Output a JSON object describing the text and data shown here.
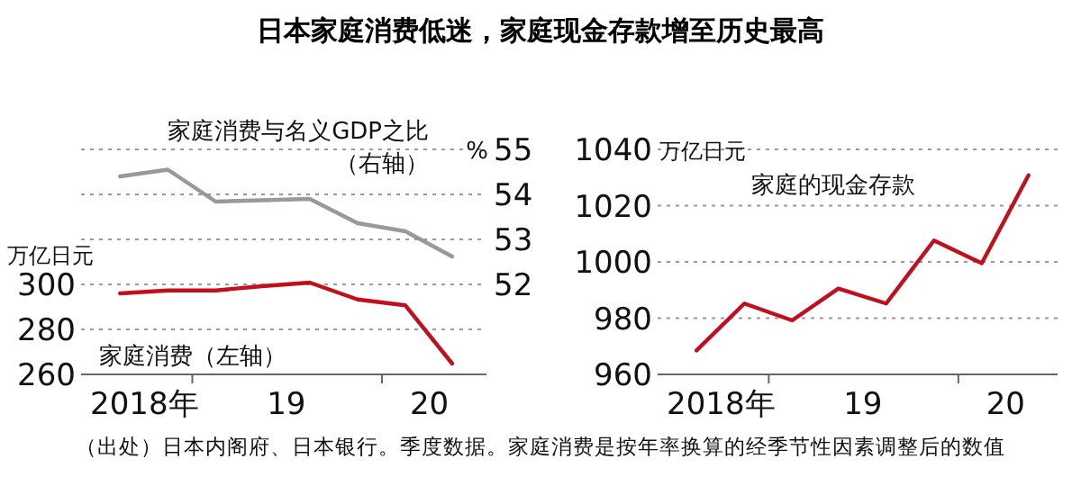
{
  "chart_data": [
    {
      "type": "line",
      "title": "日本家庭消费低迷，家庭现金存款增至历史最高",
      "ylabel": "万亿日元",
      "y2label": "%",
      "annotations": [
        "（出处）日本内阁府、日本银行。季度数据。家庭消费是按年率换算的经季节性因素调整后的数值"
      ],
      "x": [
        "2018-08-15",
        "2018-11-15",
        "2019-02-15",
        "2019-05-15",
        "2019-08-15",
        "2019-11-15",
        "2020-02-15",
        "2020-05-15"
      ],
      "series": [
        {
          "name": "家庭消费与名义GDP之比（右轴）",
          "color": "#999999",
          "axis": "y2",
          "values": [
            54.4,
            54.55,
            53.84,
            53.87,
            53.9,
            53.36,
            53.18,
            52.62
          ]
        },
        {
          "name": "家庭消费（左轴）",
          "color": "#c0101e",
          "values": [
            296,
            297.3,
            297.3,
            299.2,
            300.8,
            293.3,
            290.7,
            264.8
          ]
        }
      ],
      "xlim": [
        "2018-06-01",
        "2020-07-20"
      ],
      "xticks": [
        {
          "value": "2018-10-01",
          "label": "2018年"
        },
        {
          "value": "2019-01-01",
          "label": null
        },
        {
          "value": "2019-07-01",
          "label": "19"
        },
        {
          "value": "2020-01-01",
          "label": null
        },
        {
          "value": "2020-04-01",
          "label": "20"
        }
      ],
      "ylim": [
        260,
        360
      ],
      "yticks": [
        260,
        280,
        300
      ],
      "y2lim": [
        50,
        55
      ],
      "y2ticks": [
        52,
        53,
        54,
        55
      ],
      "grid": "y",
      "legend": false,
      "marker": "none",
      "line_style": "solid"
    },
    {
      "type": "line",
      "ylabel": "万亿日元",
      "x": [
        "2018-08-15",
        "2018-11-15",
        "2019-02-15",
        "2019-05-15",
        "2019-08-15",
        "2019-11-15",
        "2020-02-15",
        "2020-05-15"
      ],
      "series": [
        {
          "name": "家庭的现金存款",
          "color": "#c0101e",
          "values": [
            968.5,
            985.2,
            979.2,
            990.5,
            985.2,
            1007.6,
            999.5,
            1030.8
          ]
        }
      ],
      "xlim": [
        "2018-06-01",
        "2020-07-10"
      ],
      "xticks": [
        {
          "value": "2018-10-01",
          "label": "2018年"
        },
        {
          "value": "2019-01-01",
          "label": null
        },
        {
          "value": "2019-07-01",
          "label": "19"
        },
        {
          "value": "2020-01-01",
          "label": null
        },
        {
          "value": "2020-04-01",
          "label": "20"
        }
      ],
      "ylim": [
        960,
        1040
      ],
      "yticks": [
        960,
        980,
        1000,
        1020,
        1040
      ],
      "grid": "y",
      "legend": false,
      "marker": "none",
      "line_style": "solid"
    }
  ]
}
